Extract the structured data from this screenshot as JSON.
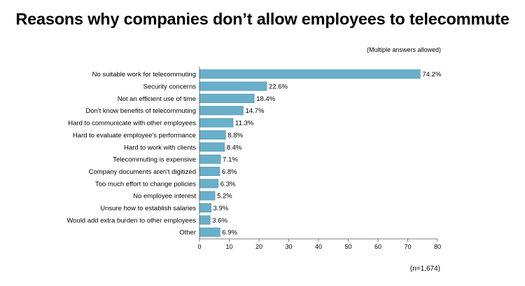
{
  "title": "Reasons why companies don’t allow employees to telecommute",
  "note": "(Multiple answers allowed)",
  "sample": "(n=1,674)",
  "colors": {
    "bar": "#68AFC9",
    "bar_edge": "#4E94AE",
    "axis": "#555555"
  },
  "chart_data": {
    "type": "bar",
    "orientation": "horizontal",
    "categories": [
      "No suitable work for telecommuting",
      "Security concerns",
      "Not an efficient use of time",
      "Don't know benefits of telecommuting",
      "Hard to communicate with other employees",
      "Hard to evaluate employee's performance",
      "Hard to work with clients",
      "Telecommuting is expensive",
      "Company documents aren't digitized",
      "Too much effort to change policies",
      "No employee interest",
      "Unsure how to establish salaries",
      "Would add extra burden to other employees",
      "Other"
    ],
    "values": [
      74.2,
      22.6,
      18.4,
      14.7,
      11.3,
      8.8,
      8.4,
      7.1,
      6.8,
      6.3,
      5.2,
      3.9,
      3.6,
      6.9
    ],
    "value_labels": [
      "74.2%",
      "22.6%",
      "18.4%",
      "14.7%",
      "11.3%",
      "8.8%",
      "8.4%",
      "7.1%",
      "6.8%",
      "6.3%",
      "5.2%",
      "3.9%",
      "3.6%",
      "6.9%"
    ],
    "xlim": [
      0,
      80
    ],
    "xticks": [
      0,
      10,
      20,
      30,
      40,
      50,
      60,
      70,
      80
    ],
    "grid": false
  }
}
